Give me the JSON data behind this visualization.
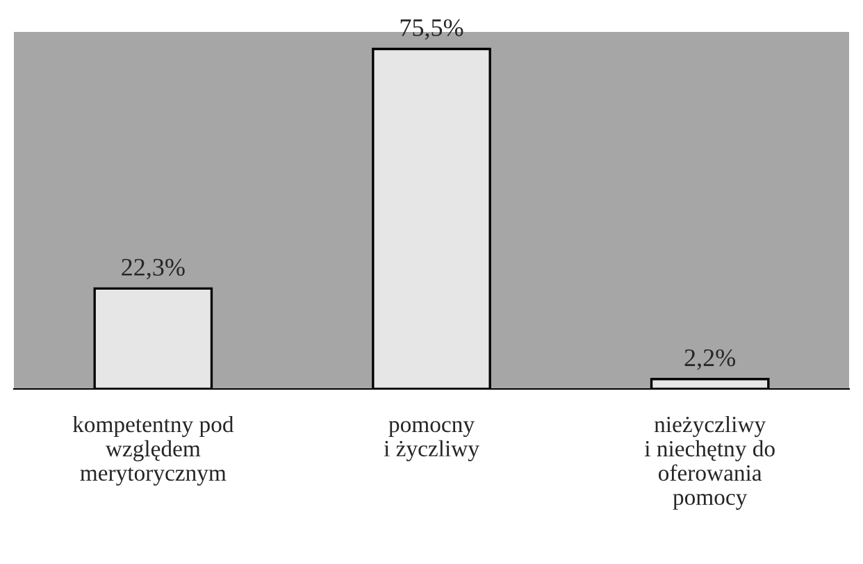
{
  "chart_data": {
    "type": "bar",
    "categories": [
      "kompetentny pod\nwzględem\nmerytorycznym",
      "pomocny\ni życzliwy",
      "nieżyczliwy\ni niechętny do\noferowania\npomocy"
    ],
    "values": [
      22.3,
      75.5,
      2.2
    ],
    "value_labels": [
      "22,3%",
      "75,5%",
      "2,2%"
    ],
    "color": "#e6e6e6",
    "grid": false,
    "legend": false
  }
}
